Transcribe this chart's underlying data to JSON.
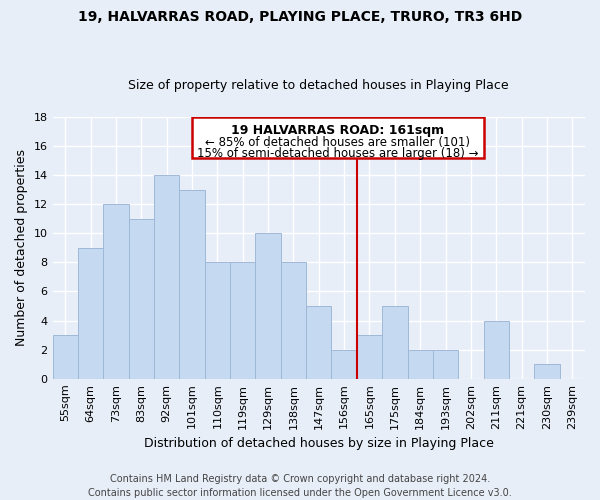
{
  "title": "19, HALVARRAS ROAD, PLAYING PLACE, TRURO, TR3 6HD",
  "subtitle": "Size of property relative to detached houses in Playing Place",
  "xlabel": "Distribution of detached houses by size in Playing Place",
  "ylabel": "Number of detached properties",
  "bar_color": "#c5d9f0",
  "bar_edge_color": "#a0b8d8",
  "categories": [
    "55sqm",
    "64sqm",
    "73sqm",
    "83sqm",
    "92sqm",
    "101sqm",
    "110sqm",
    "119sqm",
    "129sqm",
    "138sqm",
    "147sqm",
    "156sqm",
    "165sqm",
    "175sqm",
    "184sqm",
    "193sqm",
    "202sqm",
    "211sqm",
    "221sqm",
    "230sqm",
    "239sqm"
  ],
  "values": [
    3,
    9,
    12,
    11,
    14,
    13,
    8,
    8,
    10,
    8,
    5,
    2,
    3,
    5,
    2,
    2,
    0,
    4,
    0,
    1,
    0
  ],
  "ref_line_index": 11.5,
  "ref_line_color": "#cc0000",
  "annotation_title": "19 HALVARRAS ROAD: 161sqm",
  "annotation_line1": "← 85% of detached houses are smaller (101)",
  "annotation_line2": "15% of semi-detached houses are larger (18) →",
  "annotation_box_facecolor": "#ffffff",
  "annotation_box_edgecolor": "#cc0000",
  "ylim": [
    0,
    18
  ],
  "yticks": [
    0,
    2,
    4,
    6,
    8,
    10,
    12,
    14,
    16,
    18
  ],
  "footer_line1": "Contains HM Land Registry data © Crown copyright and database right 2024.",
  "footer_line2": "Contains public sector information licensed under the Open Government Licence v3.0.",
  "background_color": "#e8eef8",
  "plot_bg_color": "#e8eef8",
  "grid_color": "#ffffff",
  "title_fontsize": 10,
  "subtitle_fontsize": 9,
  "ylabel_fontsize": 9,
  "xlabel_fontsize": 9,
  "tick_fontsize": 8,
  "annotation_title_fontsize": 9,
  "annotation_text_fontsize": 8.5,
  "footer_fontsize": 7
}
